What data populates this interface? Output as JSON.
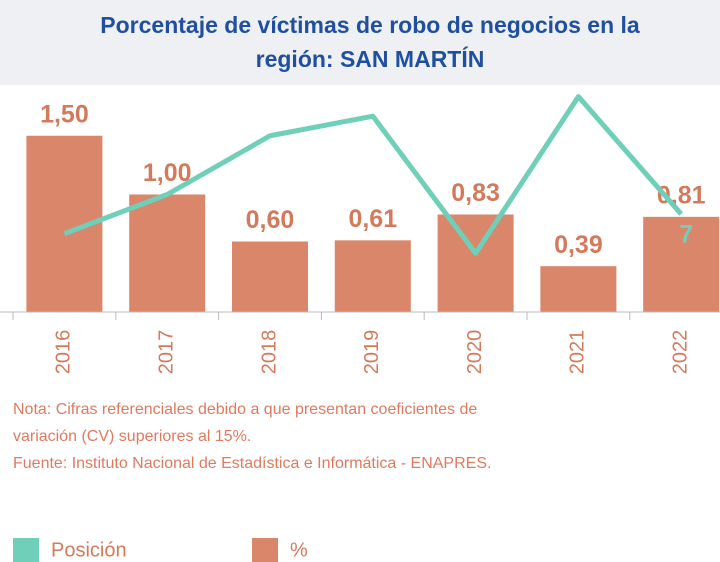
{
  "chart_data": {
    "type": "bar_line",
    "title": "Porcentaje de víctimas de robo de negocios en la región: SAN MARTÍN",
    "categories": [
      "2016",
      "2017",
      "2018",
      "2019",
      "2020",
      "2021",
      "2022"
    ],
    "series": [
      {
        "name": "%",
        "type": "bar",
        "color": "#d9866a",
        "values": [
          1.5,
          1.0,
          0.6,
          0.61,
          0.83,
          0.39,
          0.81
        ],
        "value_labels": [
          "1,50",
          "1,00",
          "0,60",
          "0,61",
          "0,83",
          "0,39",
          "0,81"
        ]
      },
      {
        "name": "Posición",
        "type": "line",
        "axis": "y2",
        "color": "#6fcfb8",
        "values": [
          8,
          6,
          3,
          2,
          9,
          1,
          7
        ],
        "value_labels": [
          null,
          null,
          null,
          null,
          null,
          null,
          "7"
        ]
      }
    ],
    "ylim": [
      0,
      2
    ],
    "y2lim": [
      0,
      12
    ],
    "y2_inverted": true,
    "notes": [
      "Nota: Cifras referenciales debido a que presentan coeficientes de",
      "variación (CV) superiores al 15%.",
      "Fuente: Instituto Nacional de Estadística e Informática - ENAPRES."
    ]
  }
}
